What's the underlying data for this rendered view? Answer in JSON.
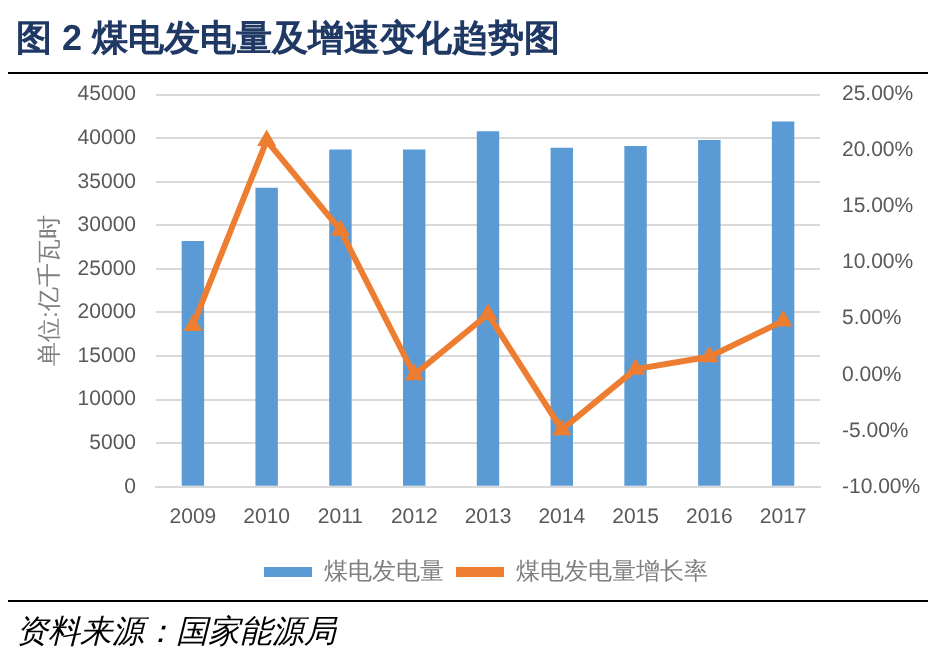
{
  "chart_data": {
    "type": "bar",
    "title": "图 2 煤电发电量及增速变化趋势图",
    "ylabel": "单位:亿千瓦时",
    "categories": [
      "2009",
      "2010",
      "2011",
      "2012",
      "2013",
      "2014",
      "2015",
      "2016",
      "2017"
    ],
    "series": [
      {
        "name": "煤电发电量",
        "color": "#5b9bd5",
        "values": [
          28200,
          34300,
          38700,
          38700,
          40800,
          38900,
          39100,
          39800,
          41900
        ]
      },
      {
        "name": "煤电发电量增长率",
        "type": "line",
        "axis": "y2",
        "color": "#ed7d31",
        "values": [
          4.4,
          20.9,
          12.9,
          0.0,
          5.4,
          -4.9,
          0.5,
          1.6,
          4.8
        ]
      }
    ],
    "ylim": [
      0,
      45000
    ],
    "yticks": [
      0,
      5000,
      10000,
      15000,
      20000,
      25000,
      30000,
      35000,
      40000,
      45000
    ],
    "y2lim": [
      -10,
      25
    ],
    "y2ticks": [
      {
        "value": -10,
        "label": "-10.00%"
      },
      {
        "value": -5,
        "label": "-5.00%"
      },
      {
        "value": 0,
        "label": "0.00%"
      },
      {
        "value": 5,
        "label": "5.00%"
      },
      {
        "value": 10,
        "label": "10.00%"
      },
      {
        "value": 15,
        "label": "15.00%"
      },
      {
        "value": 20,
        "label": "20.00%"
      },
      {
        "value": 25,
        "label": "25.00%"
      }
    ],
    "grid": "y",
    "legend": "bottom",
    "marker": "triangle",
    "annotations": [
      "资料来源：国家能源局"
    ]
  }
}
